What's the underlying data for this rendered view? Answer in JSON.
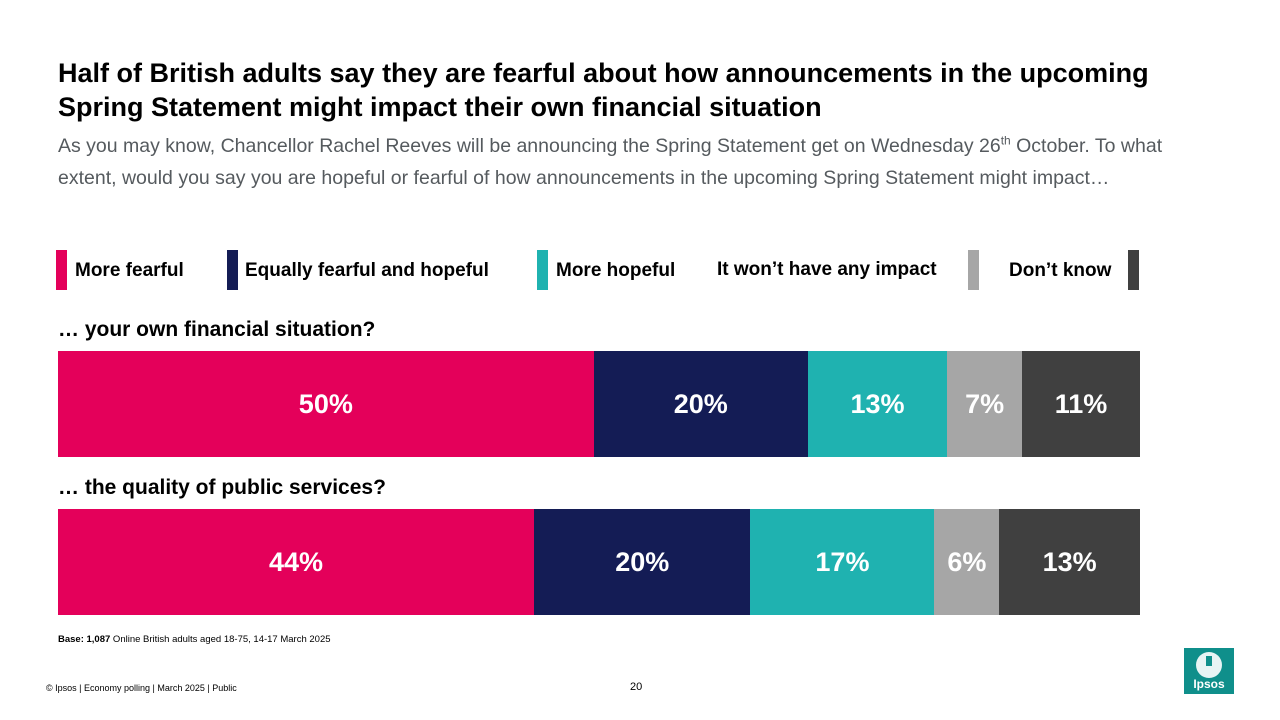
{
  "title": "Half of British adults say they are fearful about how announcements in the upcoming Spring Statement might impact their own financial situation",
  "subtitle": {
    "part1": "As you may know, Chancellor Rachel Reeves will be announcing the Spring Statement get on Wednesday 26",
    "superscript": "th",
    "part2": " October. To what extent, would you say you are hopeful or fearful of how announcements in the upcoming Spring Statement might impact…"
  },
  "legend": [
    {
      "label": "More fearful",
      "color": "#e4005a"
    },
    {
      "label": "Equally fearful and hopeful",
      "color": "#141c55"
    },
    {
      "label": "More hopeful",
      "color": "#1fb2b0"
    },
    {
      "label": "It won’t have any impact",
      "color": "#a6a6a6"
    },
    {
      "label": "Don’t know",
      "color": "#404040"
    }
  ],
  "chart_data": {
    "type": "bar",
    "orientation": "horizontal",
    "stacked": true,
    "normalized": true,
    "categories": [
      "… your own financial situation?",
      "… the quality of public services?"
    ],
    "series": [
      {
        "name": "More fearful",
        "values": [
          50,
          44
        ],
        "labels": [
          "50%",
          "44%"
        ]
      },
      {
        "name": "Equally fearful and hopeful",
        "values": [
          20,
          20
        ],
        "labels": [
          "20%",
          "20%"
        ]
      },
      {
        "name": "More hopeful",
        "values": [
          13,
          17
        ],
        "labels": [
          "13%",
          "17%"
        ]
      },
      {
        "name": "It won’t have any impact",
        "values": [
          7,
          6
        ],
        "labels": [
          "7%",
          "6%"
        ]
      },
      {
        "name": "Don’t know",
        "values": [
          11,
          13
        ],
        "labels": [
          "11%",
          "13%"
        ]
      }
    ],
    "unit": "%"
  },
  "base_note": {
    "bold": "Base: 1,087",
    "text": " Online British adults aged 18-75, 14-17 March 2025"
  },
  "footer": "© Ipsos | Economy polling | March 2025 | Public",
  "page_number": "20",
  "logo_text": "Ipsos"
}
